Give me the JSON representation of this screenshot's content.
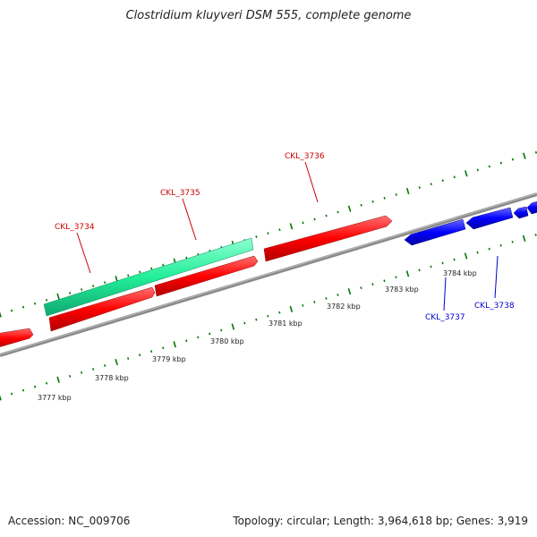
{
  "title": "Clostridium kluyveri DSM 555, complete genome",
  "accession_text": "Accession: NC_009706",
  "summary_text": "Topology: circular; Length: 3,964,618 bp; Genes: 3,919",
  "colors": {
    "forward_gene": "#ff0000",
    "reverse_gene": "#0000ff",
    "selected_gene": "#22ee99",
    "backbone": "#808080",
    "tick": "#007700",
    "forward_label": "#cc0000",
    "reverse_label": "#0000cc"
  },
  "scale_labels": [
    "3777 kbp",
    "3778 kbp",
    "3779 kbp",
    "3780 kbp",
    "3781 kbp",
    "3782 kbp",
    "3783 kbp",
    "3784 kbp"
  ],
  "gene_labels": [
    {
      "text": "CKL_3734",
      "strand": "forward"
    },
    {
      "text": "CKL_3735",
      "strand": "forward"
    },
    {
      "text": "CKL_3736",
      "strand": "forward"
    },
    {
      "text": "CKL_3737",
      "strand": "reverse"
    },
    {
      "text": "CKL_3738",
      "strand": "reverse"
    }
  ]
}
